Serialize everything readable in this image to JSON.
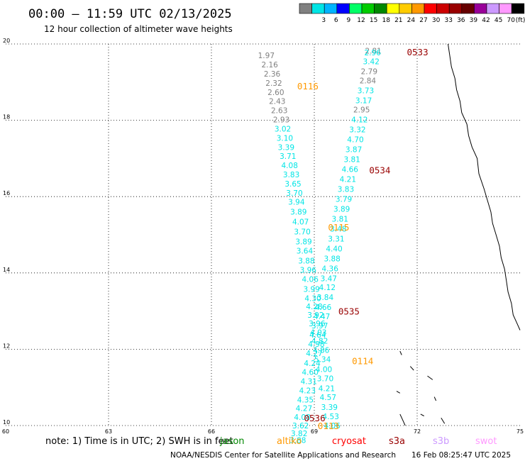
{
  "header": {
    "title": "00:00 – 11:59 UTC 02/13/2025",
    "subtitle": "12 hour collection of altimeter wave heights"
  },
  "legend": {
    "unit": "(ft)",
    "bins": [
      {
        "label": "",
        "color": "#808080"
      },
      {
        "label": "3",
        "color": "#00e5e5"
      },
      {
        "label": "6",
        "color": "#00b4ff"
      },
      {
        "label": "9",
        "color": "#0000ff"
      },
      {
        "label": "12",
        "color": "#00ff66"
      },
      {
        "label": "15",
        "color": "#00cc00"
      },
      {
        "label": "18",
        "color": "#008800"
      },
      {
        "label": "21",
        "color": "#ffff00"
      },
      {
        "label": "24",
        "color": "#ffcc00"
      },
      {
        "label": "27",
        "color": "#ff9900"
      },
      {
        "label": "30",
        "color": "#ff0000"
      },
      {
        "label": "33",
        "color": "#cc0000"
      },
      {
        "label": "36",
        "color": "#990000"
      },
      {
        "label": "39",
        "color": "#660000"
      },
      {
        "label": "42",
        "color": "#990099"
      },
      {
        "label": "45",
        "color": "#cc99ff"
      },
      {
        "label": "70",
        "color": "#ff99ff"
      },
      {
        "label": "",
        "color": "#000000"
      }
    ]
  },
  "footer": {
    "note": "note: 1) Time is in UTC; 2) SWH is in feet",
    "satellites": [
      {
        "name": "jason",
        "color": "#008800"
      },
      {
        "name": "altiko",
        "color": "#ff9900"
      },
      {
        "name": "cryosat",
        "color": "#ff0000"
      },
      {
        "name": "s3a",
        "color": "#990000"
      },
      {
        "name": "s3b",
        "color": "#cc99ff"
      },
      {
        "name": "swot",
        "color": "#ff99ff"
      }
    ],
    "credit": "NOAA/NESDIS Center for Satellite Applications and Research",
    "timestamp": "16 Feb 08:25:47 UTC 2025"
  },
  "chart_data": {
    "type": "scatter",
    "x_range": [
      -75,
      -60
    ],
    "y_range": [
      10,
      20
    ],
    "x_ticks": [
      {
        "value": -75,
        "label": "60"
      },
      {
        "value": -72,
        "label": "63"
      },
      {
        "value": -69,
        "label": "66"
      },
      {
        "value": -66,
        "label": "69"
      },
      {
        "value": -63,
        "label": "72"
      },
      {
        "value": -60,
        "label": "75"
      }
    ],
    "y_ticks": [
      {
        "value": 10,
        "label": "10"
      },
      {
        "value": 12,
        "label": "12"
      },
      {
        "value": 14,
        "label": "14"
      },
      {
        "value": 16,
        "label": "16"
      },
      {
        "value": 18,
        "label": "18"
      },
      {
        "value": 20,
        "label": "20"
      }
    ],
    "grid": true,
    "pass_labels": [
      {
        "text": "0533",
        "x": -63.3,
        "y": 19.8,
        "color": "#990000"
      },
      {
        "text": "0116",
        "x": -66.5,
        "y": 18.9,
        "color": "#ff9900"
      },
      {
        "text": "0534",
        "x": -64.4,
        "y": 16.7,
        "color": "#990000"
      },
      {
        "text": "0115",
        "x": -65.6,
        "y": 15.2,
        "color": "#ff9900"
      },
      {
        "text": "0535",
        "x": -65.3,
        "y": 13.0,
        "color": "#990000"
      },
      {
        "text": "0114",
        "x": -64.9,
        "y": 11.7,
        "color": "#ff9900"
      },
      {
        "text": "0536",
        "x": -66.3,
        "y": 10.2,
        "color": "#990000"
      },
      {
        "text": "0113",
        "x": -65.9,
        "y": 10.0,
        "color": "#ff9900"
      }
    ],
    "series": [
      {
        "name": "0116",
        "points": [
          {
            "x": -67.4,
            "y": 19.7,
            "swh": "1.97",
            "color": "#808080"
          },
          {
            "x": -67.3,
            "y": 19.46,
            "swh": "2.16",
            "color": "#808080"
          },
          {
            "x": -67.23,
            "y": 19.22,
            "swh": "2.36",
            "color": "#808080"
          },
          {
            "x": -67.18,
            "y": 18.98,
            "swh": "2.32",
            "color": "#808080"
          },
          {
            "x": -67.12,
            "y": 18.74,
            "swh": "2.60",
            "color": "#808080"
          },
          {
            "x": -67.08,
            "y": 18.5,
            "swh": "2.43",
            "color": "#808080"
          },
          {
            "x": -67.02,
            "y": 18.26,
            "swh": "2.63",
            "color": "#808080"
          },
          {
            "x": -66.96,
            "y": 18.02,
            "swh": "2.93",
            "color": "#808080"
          },
          {
            "x": -66.92,
            "y": 17.78,
            "swh": "3.02",
            "color": "#00e5e5"
          },
          {
            "x": -66.86,
            "y": 17.54,
            "swh": "3.10",
            "color": "#00e5e5"
          },
          {
            "x": -66.82,
            "y": 17.3,
            "swh": "3.39",
            "color": "#00e5e5"
          },
          {
            "x": -66.77,
            "y": 17.06,
            "swh": "3.71",
            "color": "#00e5e5"
          },
          {
            "x": -66.72,
            "y": 16.82,
            "swh": "4.08",
            "color": "#00e5e5"
          },
          {
            "x": -66.67,
            "y": 16.58,
            "swh": "3.83",
            "color": "#00e5e5"
          },
          {
            "x": -66.62,
            "y": 16.34,
            "swh": "3.65",
            "color": "#00e5e5"
          },
          {
            "x": -66.58,
            "y": 16.1,
            "swh": "3.70",
            "color": "#00e5e5"
          },
          {
            "x": -66.52,
            "y": 15.86,
            "swh": "3.94",
            "color": "#00e5e5"
          },
          {
            "x": -66.46,
            "y": 15.6,
            "swh": "3.89",
            "color": "#00e5e5"
          },
          {
            "x": -66.4,
            "y": 15.34,
            "swh": "4.07",
            "color": "#00e5e5"
          },
          {
            "x": -66.35,
            "y": 15.08,
            "swh": "3.70",
            "color": "#00e5e5"
          },
          {
            "x": -66.31,
            "y": 14.82,
            "swh": "3.89",
            "color": "#00e5e5"
          },
          {
            "x": -66.28,
            "y": 14.58,
            "swh": "3.64",
            "color": "#00e5e5"
          },
          {
            "x": -66.23,
            "y": 14.32,
            "swh": "3.88",
            "color": "#00e5e5"
          },
          {
            "x": -66.18,
            "y": 14.08,
            "swh": "3.96",
            "color": "#00e5e5"
          },
          {
            "x": -66.12,
            "y": 13.84,
            "swh": "4.06",
            "color": "#00e5e5"
          },
          {
            "x": -66.08,
            "y": 13.58,
            "swh": "3.99",
            "color": "#00e5e5"
          },
          {
            "x": -66.04,
            "y": 13.34,
            "swh": "4.30",
            "color": "#00e5e5"
          },
          {
            "x": -66.0,
            "y": 13.12,
            "swh": "4.28",
            "color": "#00e5e5"
          },
          {
            "x": -65.96,
            "y": 12.9,
            "swh": "3.92",
            "color": "#00e5e5"
          },
          {
            "x": -65.92,
            "y": 12.68,
            "swh": "3.96",
            "color": "#00e5e5"
          },
          {
            "x": -65.88,
            "y": 12.44,
            "swh": "4.03",
            "color": "#00e5e5"
          },
          {
            "x": -65.84,
            "y": 12.22,
            "swh": "4.82",
            "color": "#00e5e5"
          },
          {
            "x": -65.8,
            "y": 11.98,
            "swh": "4.86",
            "color": "#00e5e5"
          },
          {
            "x": -65.76,
            "y": 11.74,
            "swh": "5.34",
            "color": "#00e5e5"
          },
          {
            "x": -65.72,
            "y": 11.48,
            "swh": "4.00",
            "color": "#00e5e5"
          },
          {
            "x": -65.68,
            "y": 11.24,
            "swh": "3.70",
            "color": "#00e5e5"
          },
          {
            "x": -65.64,
            "y": 10.98,
            "swh": "4.21",
            "color": "#00e5e5"
          },
          {
            "x": -65.6,
            "y": 10.74,
            "swh": "4.57",
            "color": "#00e5e5"
          },
          {
            "x": -65.56,
            "y": 10.48,
            "swh": "3.39",
            "color": "#00e5e5"
          },
          {
            "x": -65.52,
            "y": 10.24,
            "swh": "4.53",
            "color": "#00e5e5"
          },
          {
            "x": -65.48,
            "y": 10.0,
            "swh": "4.06",
            "color": "#00e5e5"
          }
        ]
      },
      {
        "name": "0533",
        "points": [
          {
            "x": -64.28,
            "y": 19.82,
            "swh": "2.81",
            "color": "#808080"
          },
          {
            "x": -64.3,
            "y": 19.78,
            "swh": "2.96",
            "color": "#00e5e5"
          },
          {
            "x": -64.34,
            "y": 19.54,
            "swh": "3.42",
            "color": "#00e5e5"
          },
          {
            "x": -64.4,
            "y": 19.28,
            "swh": "2.79",
            "color": "#808080"
          },
          {
            "x": -64.44,
            "y": 19.04,
            "swh": "2.84",
            "color": "#808080"
          },
          {
            "x": -64.5,
            "y": 18.78,
            "swh": "3.73",
            "color": "#00e5e5"
          },
          {
            "x": -64.56,
            "y": 18.52,
            "swh": "3.17",
            "color": "#00e5e5"
          },
          {
            "x": -64.62,
            "y": 18.28,
            "swh": "2.95",
            "color": "#808080"
          },
          {
            "x": -64.68,
            "y": 18.02,
            "swh": "4.12",
            "color": "#00e5e5"
          },
          {
            "x": -64.74,
            "y": 17.76,
            "swh": "3.32",
            "color": "#00e5e5"
          },
          {
            "x": -64.8,
            "y": 17.5,
            "swh": "4.70",
            "color": "#00e5e5"
          },
          {
            "x": -64.85,
            "y": 17.24,
            "swh": "3.87",
            "color": "#00e5e5"
          },
          {
            "x": -64.9,
            "y": 16.98,
            "swh": "3.81",
            "color": "#00e5e5"
          },
          {
            "x": -64.96,
            "y": 16.72,
            "swh": "4.66",
            "color": "#00e5e5"
          },
          {
            "x": -65.02,
            "y": 16.46,
            "swh": "4.21",
            "color": "#00e5e5"
          },
          {
            "x": -65.08,
            "y": 16.2,
            "swh": "3.83",
            "color": "#00e5e5"
          },
          {
            "x": -65.14,
            "y": 15.94,
            "swh": "3.79",
            "color": "#00e5e5"
          },
          {
            "x": -65.2,
            "y": 15.68,
            "swh": "3.89",
            "color": "#00e5e5"
          },
          {
            "x": -65.25,
            "y": 15.42,
            "swh": "3.81",
            "color": "#00e5e5"
          },
          {
            "x": -65.3,
            "y": 15.16,
            "swh": "3.48",
            "color": "#00e5e5"
          },
          {
            "x": -65.36,
            "y": 14.9,
            "swh": "3.31",
            "color": "#00e5e5"
          },
          {
            "x": -65.42,
            "y": 14.64,
            "swh": "4.40",
            "color": "#00e5e5"
          },
          {
            "x": -65.48,
            "y": 14.38,
            "swh": "3.88",
            "color": "#00e5e5"
          },
          {
            "x": -65.54,
            "y": 14.12,
            "swh": "4.36",
            "color": "#00e5e5"
          },
          {
            "x": -65.58,
            "y": 13.86,
            "swh": "3.47",
            "color": "#00e5e5"
          },
          {
            "x": -65.62,
            "y": 13.62,
            "swh": "4.12",
            "color": "#00e5e5"
          },
          {
            "x": -65.68,
            "y": 13.36,
            "swh": "3.84",
            "color": "#00e5e5"
          },
          {
            "x": -65.74,
            "y": 13.1,
            "swh": "4.66",
            "color": "#00e5e5"
          },
          {
            "x": -65.78,
            "y": 12.86,
            "swh": "4.47",
            "color": "#00e5e5"
          },
          {
            "x": -65.84,
            "y": 12.62,
            "swh": "3.97",
            "color": "#00e5e5"
          },
          {
            "x": -65.9,
            "y": 12.38,
            "swh": "4.64",
            "color": "#00e5e5"
          },
          {
            "x": -65.94,
            "y": 12.14,
            "swh": "4.98",
            "color": "#00e5e5"
          },
          {
            "x": -66.0,
            "y": 11.9,
            "swh": "4.27",
            "color": "#00e5e5"
          },
          {
            "x": -66.06,
            "y": 11.64,
            "swh": "4.24",
            "color": "#00e5e5"
          },
          {
            "x": -66.12,
            "y": 11.4,
            "swh": "4.60",
            "color": "#00e5e5"
          },
          {
            "x": -66.16,
            "y": 11.16,
            "swh": "4.31",
            "color": "#00e5e5"
          },
          {
            "x": -66.2,
            "y": 10.92,
            "swh": "4.23",
            "color": "#00e5e5"
          },
          {
            "x": -66.26,
            "y": 10.68,
            "swh": "4.35",
            "color": "#00e5e5"
          },
          {
            "x": -66.3,
            "y": 10.46,
            "swh": "4.27",
            "color": "#00e5e5"
          },
          {
            "x": -66.35,
            "y": 10.22,
            "swh": "4.08",
            "color": "#00e5e5"
          },
          {
            "x": -66.4,
            "y": 10.0,
            "swh": "3.62",
            "color": "#00e5e5"
          },
          {
            "x": -66.44,
            "y": 9.8,
            "swh": "3.82",
            "color": "#00e5e5"
          },
          {
            "x": -66.48,
            "y": 9.62,
            "swh": "3.88",
            "color": "#00e5e5"
          }
        ]
      }
    ],
    "coastlines": [
      [
        [
          -62.1,
          20.0
        ],
        [
          -62.05,
          19.7
        ],
        [
          -62.0,
          19.4
        ],
        [
          -61.9,
          19.1
        ],
        [
          -61.85,
          18.8
        ],
        [
          -61.75,
          18.5
        ],
        [
          -61.7,
          18.2
        ],
        [
          -61.55,
          17.9
        ],
        [
          -61.5,
          17.6
        ],
        [
          -61.4,
          17.3
        ],
        [
          -61.25,
          17.0
        ],
        [
          -61.2,
          16.6
        ],
        [
          -61.05,
          16.2
        ],
        [
          -60.95,
          15.9
        ],
        [
          -60.85,
          15.6
        ],
        [
          -60.8,
          15.3
        ],
        [
          -60.7,
          15.0
        ],
        [
          -60.6,
          14.7
        ],
        [
          -60.55,
          14.4
        ],
        [
          -60.45,
          14.1
        ],
        [
          -60.4,
          13.8
        ],
        [
          -60.35,
          13.5
        ],
        [
          -60.25,
          13.2
        ],
        [
          -60.2,
          12.9
        ],
        [
          -60.1,
          12.7
        ],
        [
          -60.0,
          12.5
        ]
      ],
      [
        [
          -63.5,
          11.95
        ],
        [
          -63.45,
          11.85
        ]
      ],
      [
        [
          -63.2,
          11.55
        ],
        [
          -63.1,
          11.45
        ]
      ],
      [
        [
          -62.7,
          11.3
        ],
        [
          -62.55,
          11.2
        ]
      ],
      [
        [
          -63.6,
          10.9
        ],
        [
          -63.5,
          10.85
        ]
      ],
      [
        [
          -62.5,
          10.75
        ],
        [
          -62.45,
          10.65
        ]
      ],
      [
        [
          -63.5,
          10.3
        ],
        [
          -63.4,
          10.1
        ],
        [
          -63.35,
          10.0
        ]
      ],
      [
        [
          -62.3,
          10.2
        ],
        [
          -62.2,
          10.05
        ]
      ],
      [
        [
          -62.9,
          10.3
        ],
        [
          -62.8,
          10.25
        ]
      ]
    ]
  }
}
